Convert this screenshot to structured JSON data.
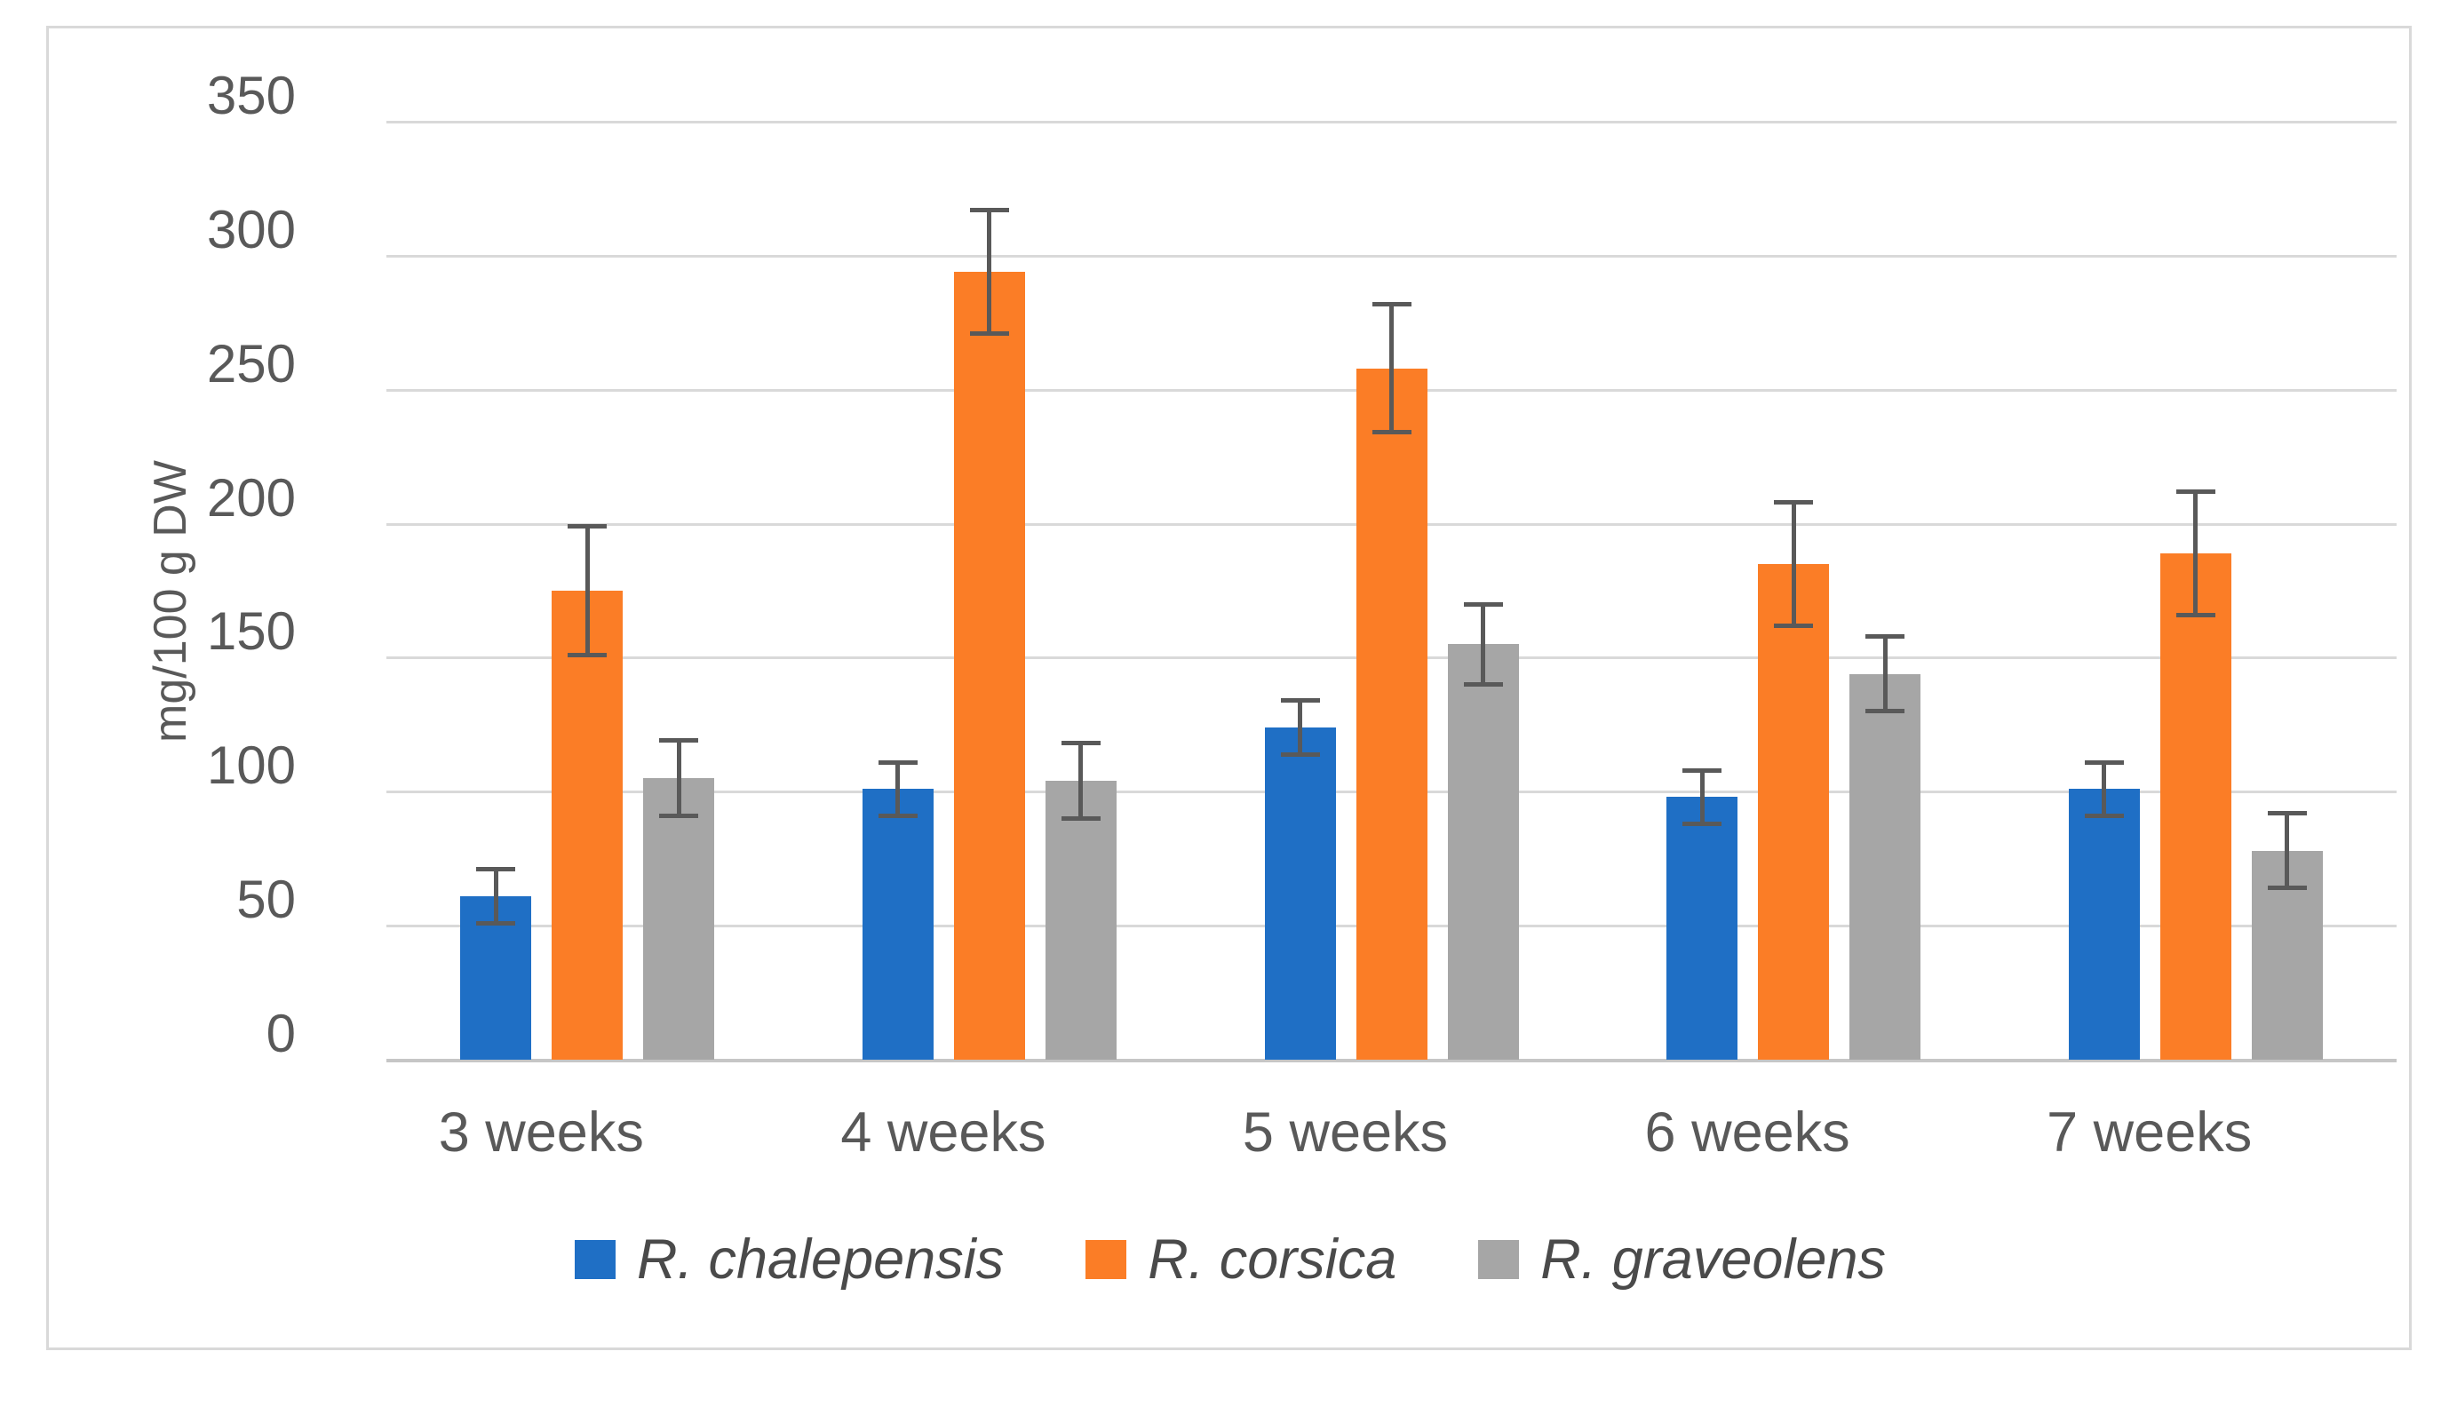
{
  "chart_data": {
    "type": "bar",
    "title": "",
    "xlabel": "",
    "ylabel": "mg/100 g DW",
    "ylim": [
      0,
      350
    ],
    "ytick_step": 50,
    "yticks": [
      0,
      50,
      100,
      150,
      200,
      250,
      300,
      350
    ],
    "grid": true,
    "error_bars": true,
    "legend_position": "bottom",
    "categories": [
      "3 weeks",
      "4 weeks",
      "5 weeks",
      "6 weeks",
      "7 weeks"
    ],
    "series": [
      {
        "name": "R. chalepensis",
        "color": "#1f6fc5",
        "values": [
          61,
          101,
          124,
          98,
          101
        ],
        "errors": [
          10,
          10,
          10,
          10,
          10
        ]
      },
      {
        "name": "R. corsica",
        "color": "#fb7d26",
        "values": [
          175,
          294,
          258,
          185,
          189
        ],
        "errors": [
          24,
          23,
          24,
          23,
          23
        ]
      },
      {
        "name": "R. graveolens",
        "color": "#a6a6a6",
        "values": [
          105,
          104,
          155,
          144,
          78
        ],
        "errors": [
          14,
          14,
          15,
          14,
          14
        ]
      }
    ],
    "error_bar_color": "#595959"
  }
}
